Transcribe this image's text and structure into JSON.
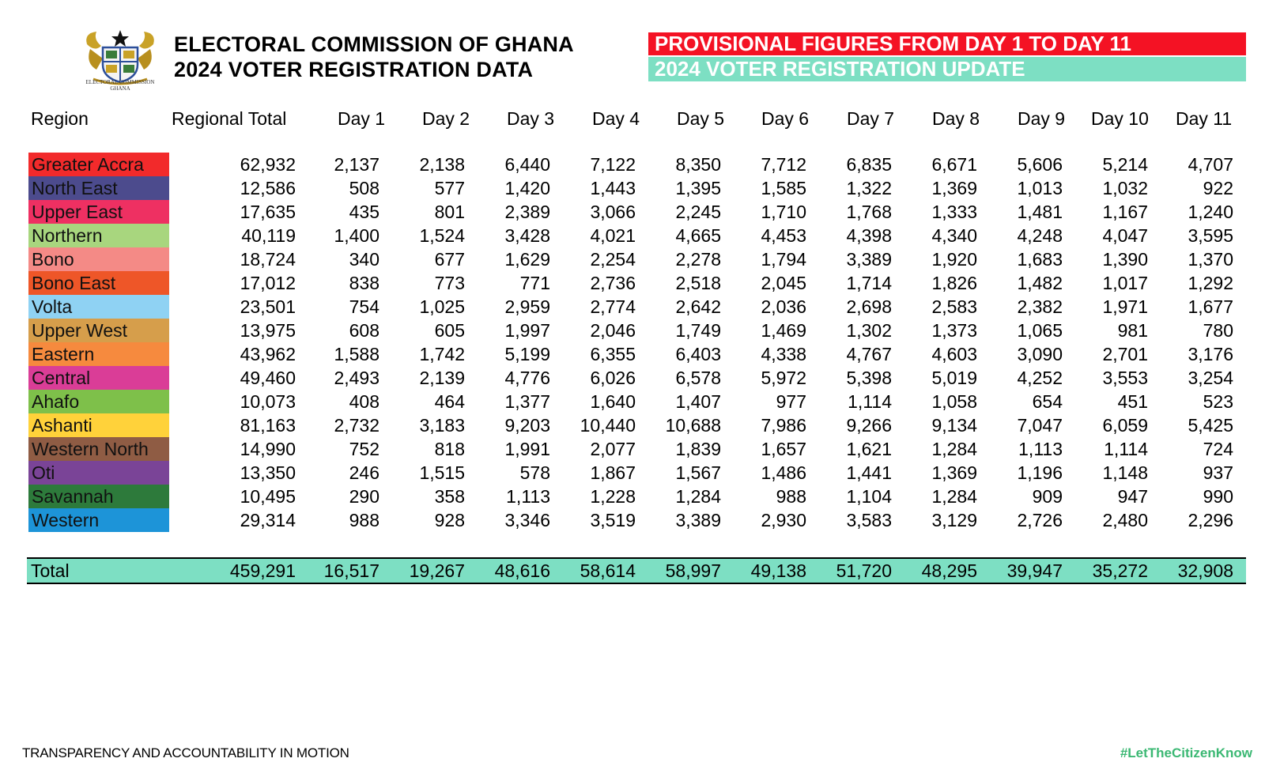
{
  "header": {
    "title_line1": "ELECTORAL COMMISSION OF GHANA",
    "title_line2": "2024 VOTER REGISTRATION DATA",
    "banner_red": "PROVISIONAL FIGURES FROM DAY 1 TO DAY 11",
    "banner_teal": "2024 VOTER REGISTRATION UPDATE",
    "logo_caption_line1": "ELECTORAL COMMISSION",
    "logo_caption_line2": "GHANA",
    "logo_icon": "coat-of-arms-icon"
  },
  "table": {
    "columns": [
      "Region",
      "Regional Total",
      "Day 1",
      "Day 2",
      "Day 3",
      "Day 4",
      "Day 5",
      "Day 6",
      "Day 7",
      "Day 8",
      "Day 9",
      "Day 10",
      "Day 11"
    ],
    "rows": [
      {
        "region": "Greater Accra",
        "color": "#f22a2b",
        "values": [
          "62,932",
          "2,137",
          "2,138",
          "6,440",
          "7,122",
          "8,350",
          "7,712",
          "6,835",
          "6,671",
          "5,606",
          "5,214",
          "4,707"
        ]
      },
      {
        "region": "North East",
        "color": "#4c4b8d",
        "values": [
          "12,586",
          "508",
          "577",
          "1,420",
          "1,443",
          "1,395",
          "1,585",
          "1,322",
          "1,369",
          "1,013",
          "1,032",
          "922"
        ]
      },
      {
        "region": "Upper East",
        "color": "#ee3062",
        "values": [
          "17,635",
          "435",
          "801",
          "2,389",
          "3,066",
          "2,245",
          "1,710",
          "1,768",
          "1,333",
          "1,481",
          "1,167",
          "1,240"
        ]
      },
      {
        "region": "Northern",
        "color": "#a8d67e",
        "values": [
          "40,119",
          "1,400",
          "1,524",
          "3,428",
          "4,021",
          "4,665",
          "4,453",
          "4,398",
          "4,340",
          "4,248",
          "4,047",
          "3,595"
        ]
      },
      {
        "region": "Bono",
        "color": "#f48a86",
        "values": [
          "18,724",
          "340",
          "677",
          "1,629",
          "2,254",
          "2,278",
          "1,794",
          "3,389",
          "1,920",
          "1,683",
          "1,390",
          "1,370"
        ]
      },
      {
        "region": "Bono East",
        "color": "#ee5628",
        "values": [
          "17,012",
          "838",
          "773",
          "771",
          "2,736",
          "2,518",
          "2,045",
          "1,714",
          "1,826",
          "1,482",
          "1,017",
          "1,292"
        ]
      },
      {
        "region": "Volta",
        "color": "#8fd2f3",
        "values": [
          "23,501",
          "754",
          "1,025",
          "2,959",
          "2,774",
          "2,642",
          "2,036",
          "2,698",
          "2,583",
          "2,382",
          "1,971",
          "1,677"
        ]
      },
      {
        "region": "Upper West",
        "color": "#d69e4b",
        "values": [
          "13,975",
          "608",
          "605",
          "1,997",
          "2,046",
          "1,749",
          "1,469",
          "1,302",
          "1,373",
          "1,065",
          "981",
          "780"
        ]
      },
      {
        "region": "Eastern",
        "color": "#f68a3e",
        "values": [
          "43,962",
          "1,588",
          "1,742",
          "5,199",
          "6,355",
          "6,403",
          "4,338",
          "4,767",
          "4,603",
          "3,090",
          "2,701",
          "3,176"
        ]
      },
      {
        "region": "Central",
        "color": "#da3d97",
        "values": [
          "49,460",
          "2,493",
          "2,139",
          "4,776",
          "6,026",
          "6,578",
          "5,972",
          "5,398",
          "5,019",
          "4,252",
          "3,553",
          "3,254"
        ]
      },
      {
        "region": "Ahafo",
        "color": "#7ec04a",
        "values": [
          "10,073",
          "408",
          "464",
          "1,377",
          "1,640",
          "1,407",
          "977",
          "1,114",
          "1,058",
          "654",
          "451",
          "523"
        ]
      },
      {
        "region": "Ashanti",
        "color": "#ffd23a",
        "values": [
          "81,163",
          "2,732",
          "3,183",
          "9,203",
          "10,440",
          "10,688",
          "7,986",
          "9,266",
          "9,134",
          "7,047",
          "6,059",
          "5,425"
        ]
      },
      {
        "region": "Western North",
        "color": "#8f5c44",
        "values": [
          "14,990",
          "752",
          "818",
          "1,991",
          "2,077",
          "1,839",
          "1,657",
          "1,621",
          "1,284",
          "1,113",
          "1,114",
          "724"
        ]
      },
      {
        "region": "Oti",
        "color": "#7a4497",
        "values": [
          "13,350",
          "246",
          "1,515",
          "578",
          "1,867",
          "1,567",
          "1,486",
          "1,441",
          "1,369",
          "1,196",
          "1,148",
          "937"
        ]
      },
      {
        "region": "Savannah",
        "color": "#2d7a3b",
        "values": [
          "10,495",
          "290",
          "358",
          "1,113",
          "1,228",
          "1,284",
          "988",
          "1,104",
          "1,284",
          "909",
          "947",
          "990"
        ]
      },
      {
        "region": "Western",
        "color": "#1d94d8",
        "values": [
          "29,314",
          "988",
          "928",
          "3,346",
          "3,519",
          "3,389",
          "2,930",
          "3,583",
          "3,129",
          "2,726",
          "2,480",
          "2,296"
        ]
      }
    ],
    "total": {
      "label": "Total",
      "values": [
        "459,291",
        "16,517",
        "19,267",
        "48,616",
        "58,614",
        "58,997",
        "49,138",
        "51,720",
        "48,295",
        "39,947",
        "35,272",
        "32,908"
      ]
    }
  },
  "footer": {
    "left": "TRANSPARENCY AND ACCOUNTABILITY IN MOTION",
    "right": "#LetTheCitizenKnow"
  },
  "colors": {
    "red_banner": "#f41224",
    "teal": "#7ddfc3",
    "hashtag": "#3bb873"
  }
}
